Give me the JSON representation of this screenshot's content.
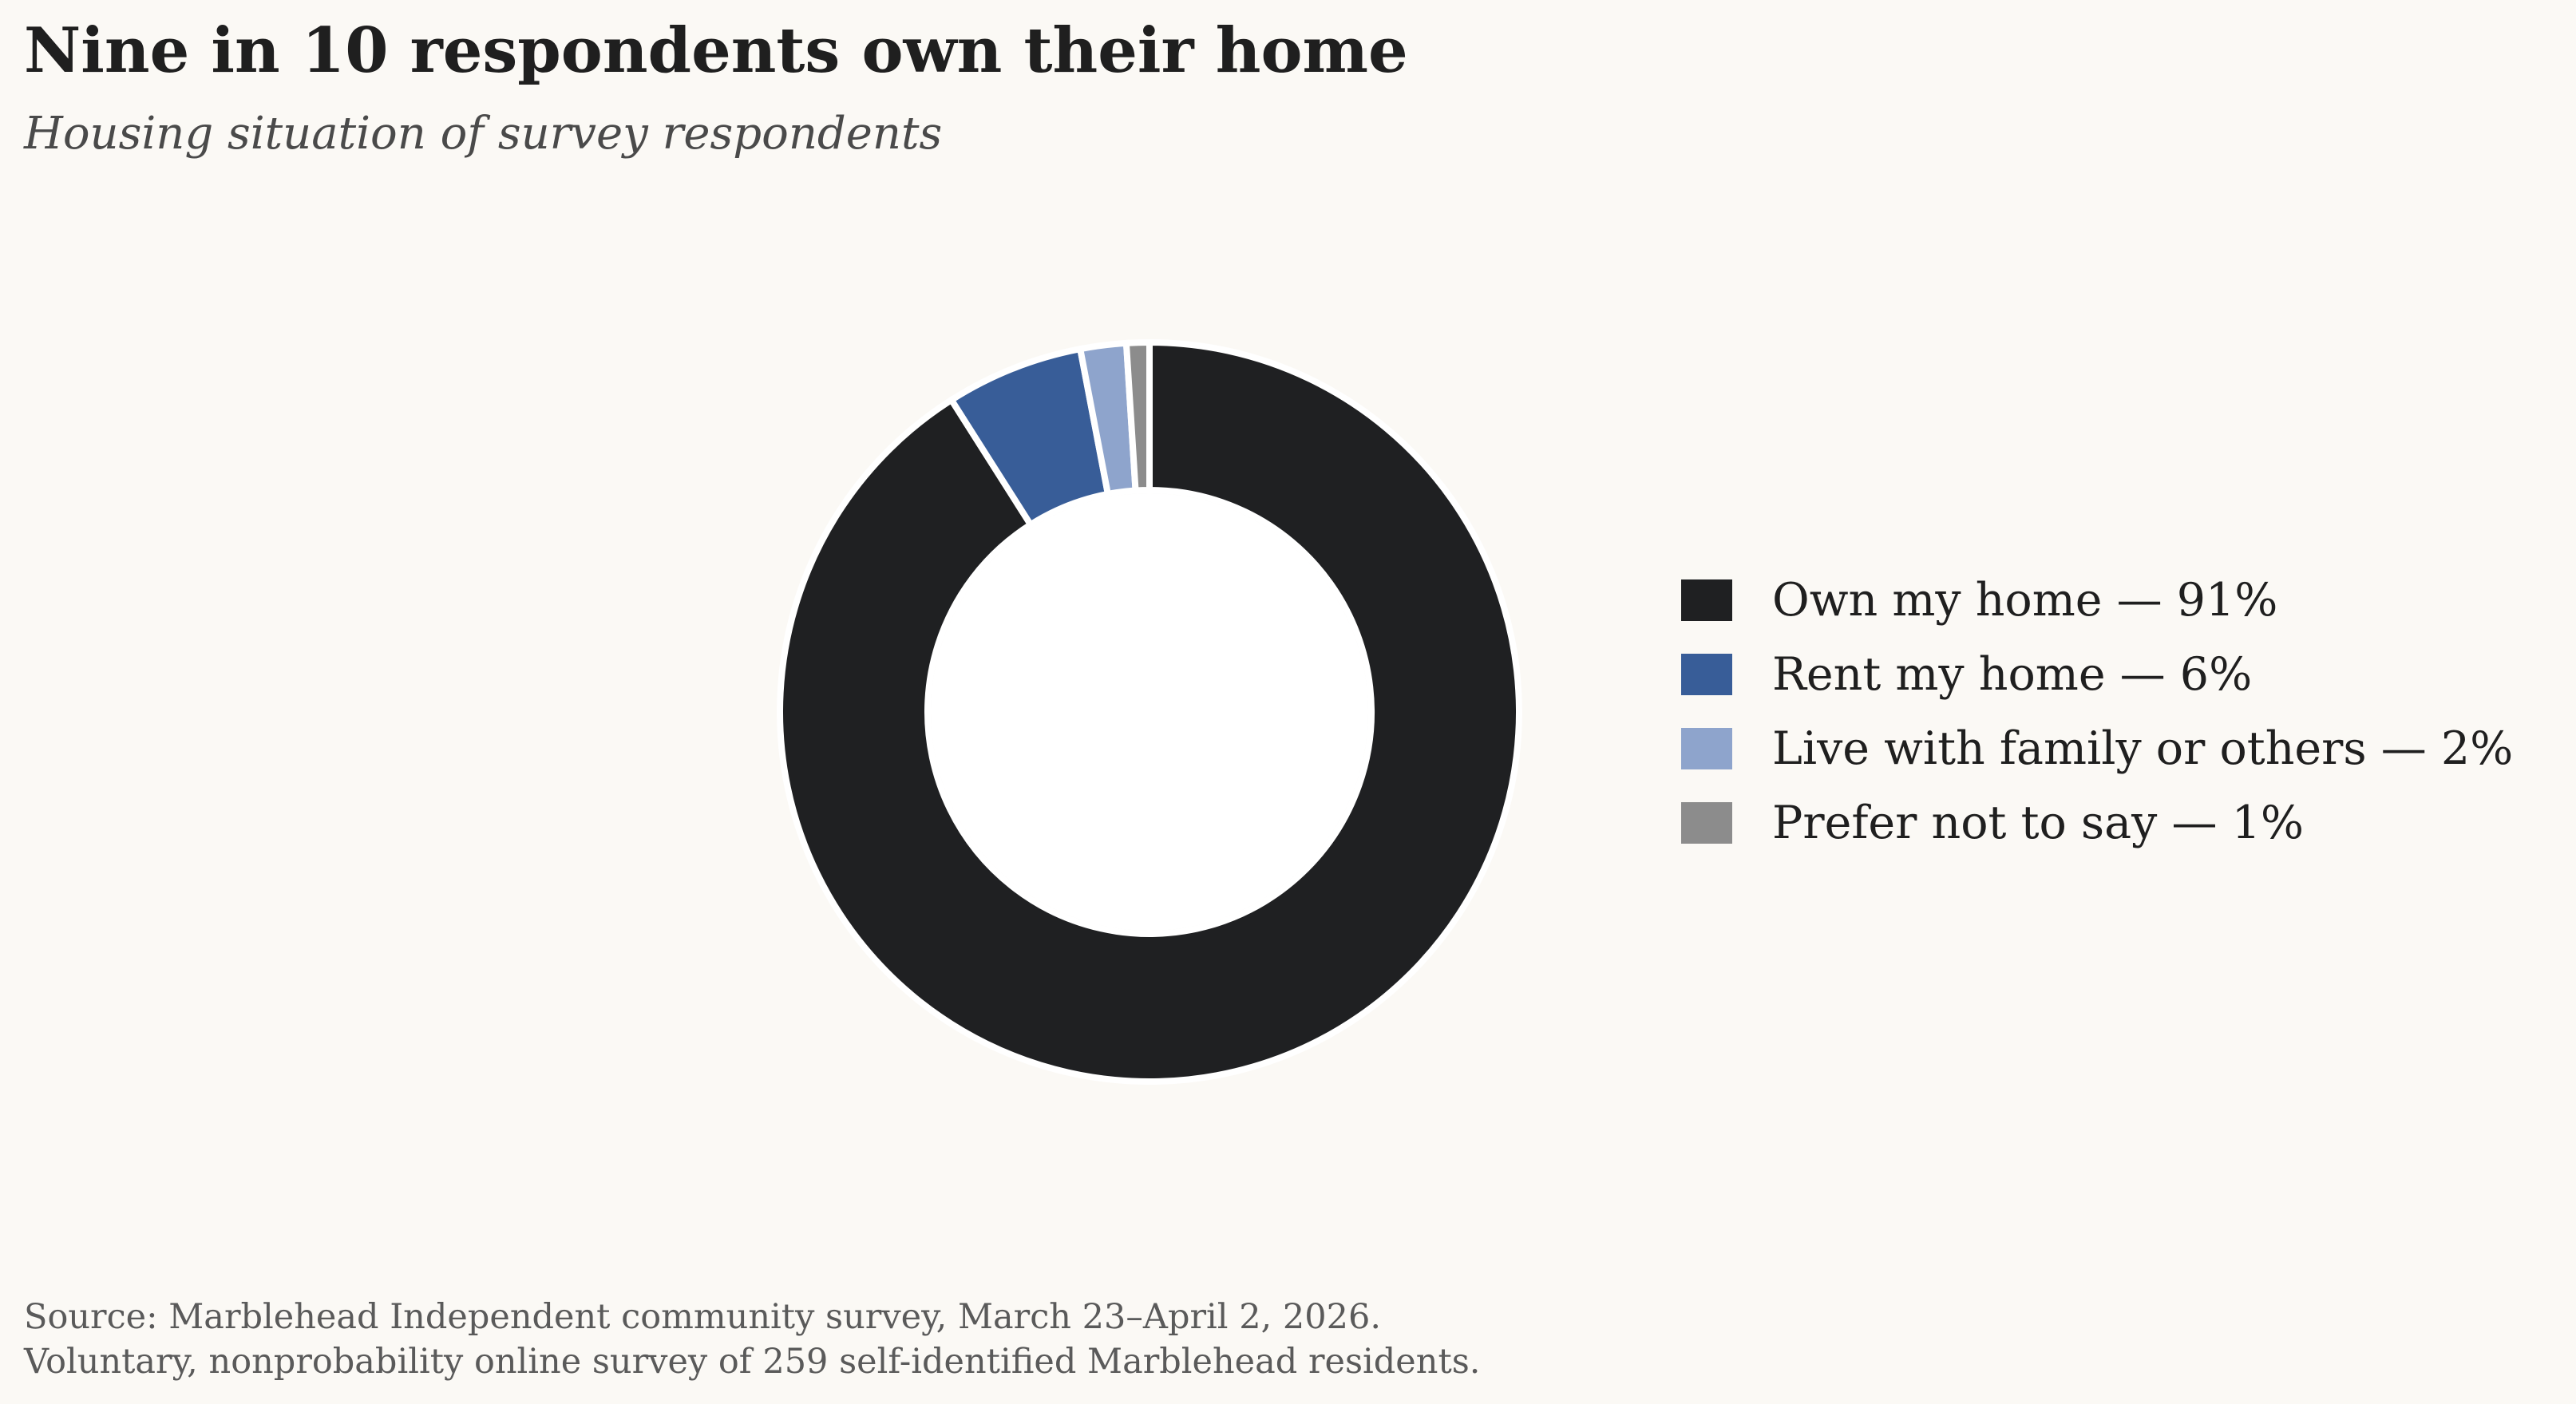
{
  "header": {
    "title": "Nine in 10 respondents own their home",
    "subtitle": "Housing situation of survey respondents"
  },
  "chart_data": {
    "type": "pie",
    "donut": true,
    "title": "Nine in 10 respondents own their home",
    "subtitle": "Housing situation of survey respondents",
    "legend_position": "right",
    "slices": [
      {
        "category": "Own my home",
        "value": 91,
        "label": "Own my home — 91%",
        "color": "#1f2022"
      },
      {
        "category": "Rent my home",
        "value": 6,
        "label": "Rent my home — 6%",
        "color": "#385d98"
      },
      {
        "category": "Live with family or others",
        "value": 2,
        "label": "Live with family or others — 2%",
        "color": "#8ea4cc"
      },
      {
        "category": "Prefer not to say",
        "value": 1,
        "label": "Prefer not to say — 1%",
        "color": "#8c8c8c"
      }
    ]
  },
  "footer": {
    "source_line1": "Source: Marblehead Independent community survey, March 23–April 2, 2026.",
    "source_line2": "Voluntary, nonprobability online survey of 259 self-identified Marblehead residents."
  }
}
